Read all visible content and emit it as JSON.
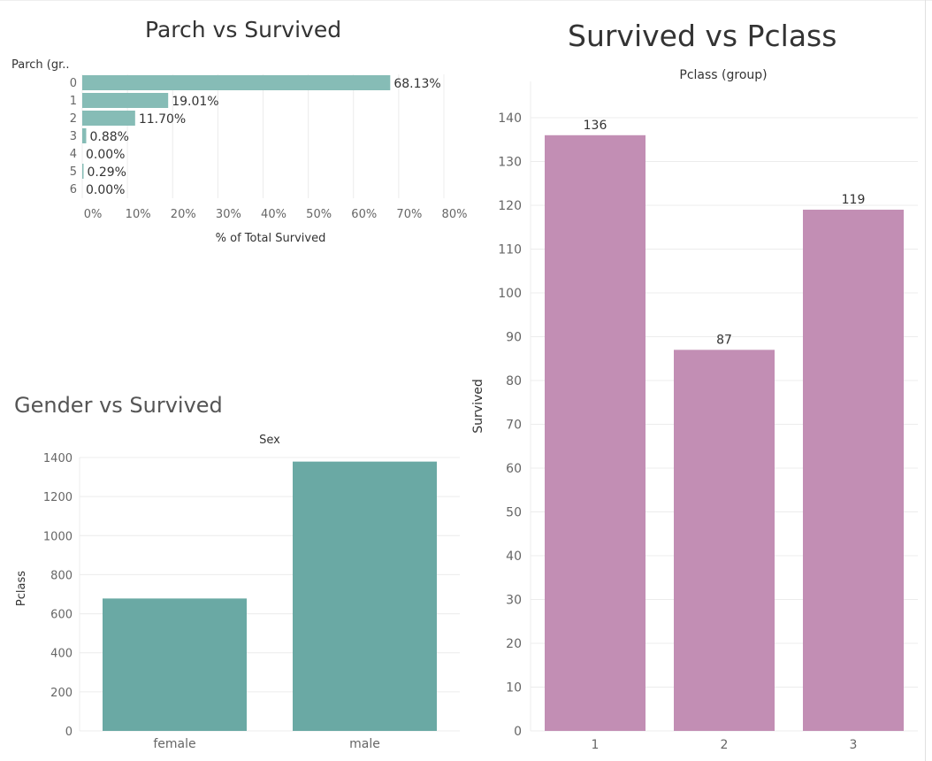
{
  "colors": {
    "parch_bar": "#86bcb6",
    "gender_bar": "#6aa9a4",
    "pclass_bar": "#c28eb4",
    "grid": "#ececec",
    "axis_text": "#666666",
    "label_text": "#333333"
  },
  "chart_data": [
    {
      "type": "bar",
      "orientation": "horizontal",
      "title": "Parch vs Survived",
      "category_header": "Parch (gr..",
      "xlabel": "% of Total Survived",
      "categories": [
        "0",
        "1",
        "2",
        "3",
        "4",
        "5",
        "6"
      ],
      "values": [
        68.13,
        19.01,
        11.7,
        0.88,
        0.0,
        0.29,
        0.0
      ],
      "data_labels": [
        "68.13%",
        "19.01%",
        "11.70%",
        "0.88%",
        "0.00%",
        "0.29%",
        "0.00%"
      ],
      "xlim": [
        0,
        80
      ],
      "x_ticks": [
        "0%",
        "10%",
        "20%",
        "30%",
        "40%",
        "50%",
        "60%",
        "70%",
        "80%"
      ],
      "grid": true
    },
    {
      "type": "bar",
      "title": "Gender vs Survived",
      "column_header": "Sex",
      "ylabel": "Pclass",
      "categories": [
        "female",
        "male"
      ],
      "values": [
        678,
        1379
      ],
      "ylim": [
        0,
        1400
      ],
      "y_ticks": [
        "0",
        "200",
        "400",
        "600",
        "800",
        "1000",
        "1200",
        "1400"
      ],
      "grid": true
    },
    {
      "type": "bar",
      "title": "Survived vs Pclass",
      "column_header": "Pclass (group)",
      "ylabel": "Survived",
      "categories": [
        "1",
        "2",
        "3"
      ],
      "values": [
        136,
        87,
        119
      ],
      "data_labels": [
        "136",
        "87",
        "119"
      ],
      "ylim": [
        0,
        140
      ],
      "y_ticks": [
        "0",
        "10",
        "20",
        "30",
        "40",
        "50",
        "60",
        "70",
        "80",
        "90",
        "100",
        "110",
        "120",
        "130",
        "140"
      ],
      "grid": true
    }
  ]
}
